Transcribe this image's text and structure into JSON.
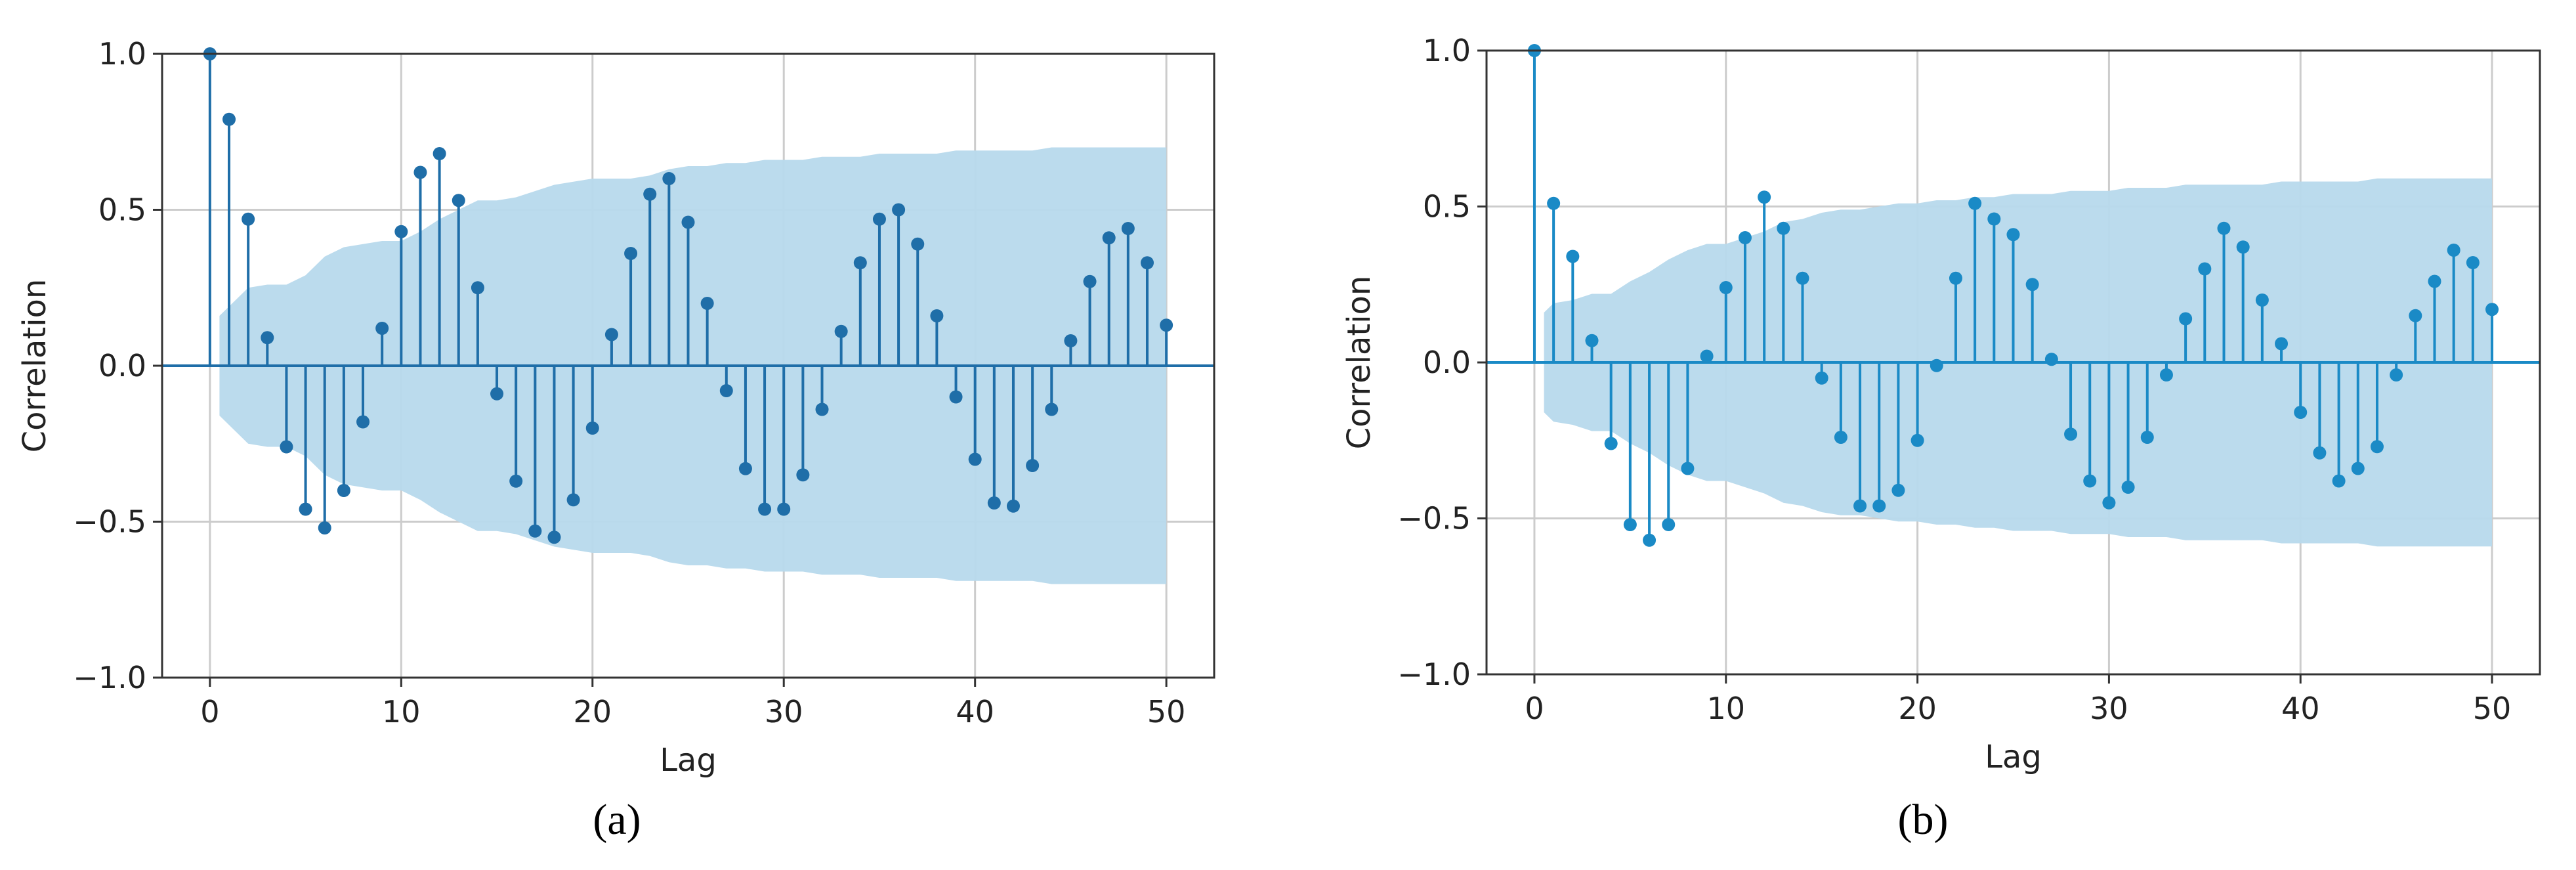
{
  "colors": {
    "band": "#b7d9ec",
    "stem_a": "#1f6ea8",
    "stem_b": "#1a8ac6",
    "axis": "#333333",
    "grid": "#cccccc",
    "text": "#222222"
  },
  "chart_data": [
    {
      "type": "stem",
      "caption": "(a)",
      "xlabel": "Lag",
      "ylabel": "Correlation",
      "xlim": [
        -2.5,
        52.5
      ],
      "ylim": [
        -1.0,
        1.0
      ],
      "xticks": [
        0,
        10,
        20,
        30,
        40,
        50
      ],
      "yticks": [
        1.0,
        0.5,
        0.0,
        -0.5,
        -1.0
      ],
      "xtick_labels": [
        "0",
        "10",
        "20",
        "30",
        "40",
        "50"
      ],
      "ytick_labels": [
        "1.0",
        "0.5",
        "0.0",
        "−0.5",
        "−1.0"
      ],
      "grid": true,
      "lags": [
        0,
        1,
        2,
        3,
        4,
        5,
        6,
        7,
        8,
        9,
        10,
        11,
        12,
        13,
        14,
        15,
        16,
        17,
        18,
        19,
        20,
        21,
        22,
        23,
        24,
        25,
        26,
        27,
        28,
        29,
        30,
        31,
        32,
        33,
        34,
        35,
        36,
        37,
        38,
        39,
        40,
        41,
        42,
        43,
        44,
        45,
        46,
        47,
        48,
        49,
        50
      ],
      "values": [
        1.0,
        0.79,
        0.47,
        0.09,
        -0.26,
        -0.46,
        -0.52,
        -0.4,
        -0.18,
        0.12,
        0.43,
        0.62,
        0.68,
        0.53,
        0.25,
        -0.09,
        -0.37,
        -0.53,
        -0.55,
        -0.43,
        -0.2,
        0.1,
        0.36,
        0.55,
        0.6,
        0.46,
        0.2,
        -0.08,
        -0.33,
        -0.46,
        -0.46,
        -0.35,
        -0.14,
        0.11,
        0.33,
        0.47,
        0.5,
        0.39,
        0.16,
        -0.1,
        -0.3,
        -0.44,
        -0.45,
        -0.32,
        -0.14,
        0.08,
        0.27,
        0.41,
        0.44,
        0.33,
        0.13
      ],
      "confidence_band": [
        0.16,
        0.19,
        0.25,
        0.26,
        0.26,
        0.29,
        0.35,
        0.38,
        0.39,
        0.4,
        0.4,
        0.43,
        0.47,
        0.5,
        0.53,
        0.53,
        0.54,
        0.56,
        0.58,
        0.59,
        0.6,
        0.6,
        0.6,
        0.61,
        0.63,
        0.64,
        0.64,
        0.65,
        0.65,
        0.66,
        0.66,
        0.66,
        0.67,
        0.67,
        0.67,
        0.68,
        0.68,
        0.68,
        0.68,
        0.69,
        0.69,
        0.69,
        0.69,
        0.69,
        0.7,
        0.7,
        0.7,
        0.7,
        0.7,
        0.7,
        0.7
      ]
    },
    {
      "type": "stem",
      "caption": "(b)",
      "xlabel": "Lag",
      "ylabel": "Correlation",
      "xlim": [
        -2.5,
        52.5
      ],
      "ylim": [
        -1.0,
        1.0
      ],
      "xticks": [
        0,
        10,
        20,
        30,
        40,
        50
      ],
      "yticks": [
        1.0,
        0.5,
        0.0,
        -0.5,
        -1.0
      ],
      "xtick_labels": [
        "0",
        "10",
        "20",
        "30",
        "40",
        "50"
      ],
      "ytick_labels": [
        "1.0",
        "0.5",
        "0.0",
        "−0.5",
        "−1.0"
      ],
      "grid": true,
      "lags": [
        0,
        1,
        2,
        3,
        4,
        5,
        6,
        7,
        8,
        9,
        10,
        11,
        12,
        13,
        14,
        15,
        16,
        17,
        18,
        19,
        20,
        21,
        22,
        23,
        24,
        25,
        26,
        27,
        28,
        29,
        30,
        31,
        32,
        33,
        34,
        35,
        36,
        37,
        38,
        39,
        40,
        41,
        42,
        43,
        44,
        45,
        46,
        47,
        48,
        49,
        50
      ],
      "values": [
        1.0,
        0.51,
        0.34,
        0.07,
        -0.26,
        -0.52,
        -0.57,
        -0.52,
        -0.34,
        0.02,
        0.24,
        0.4,
        0.53,
        0.43,
        0.27,
        -0.05,
        -0.24,
        -0.46,
        -0.46,
        -0.41,
        -0.25,
        -0.01,
        0.27,
        0.51,
        0.46,
        0.41,
        0.25,
        0.01,
        -0.23,
        -0.38,
        -0.45,
        -0.4,
        -0.24,
        -0.04,
        0.14,
        0.3,
        0.43,
        0.37,
        0.2,
        0.06,
        -0.16,
        -0.29,
        -0.38,
        -0.34,
        -0.27,
        -0.04,
        0.15,
        0.26,
        0.36,
        0.32,
        0.17
      ],
      "confidence_band": [
        0.16,
        0.19,
        0.2,
        0.22,
        0.22,
        0.26,
        0.29,
        0.33,
        0.36,
        0.38,
        0.38,
        0.4,
        0.42,
        0.45,
        0.46,
        0.48,
        0.49,
        0.49,
        0.5,
        0.51,
        0.51,
        0.52,
        0.52,
        0.53,
        0.53,
        0.54,
        0.54,
        0.54,
        0.55,
        0.55,
        0.55,
        0.56,
        0.56,
        0.56,
        0.57,
        0.57,
        0.57,
        0.57,
        0.57,
        0.58,
        0.58,
        0.58,
        0.58,
        0.58,
        0.59,
        0.59,
        0.59,
        0.59,
        0.59,
        0.59,
        0.59
      ]
    }
  ]
}
